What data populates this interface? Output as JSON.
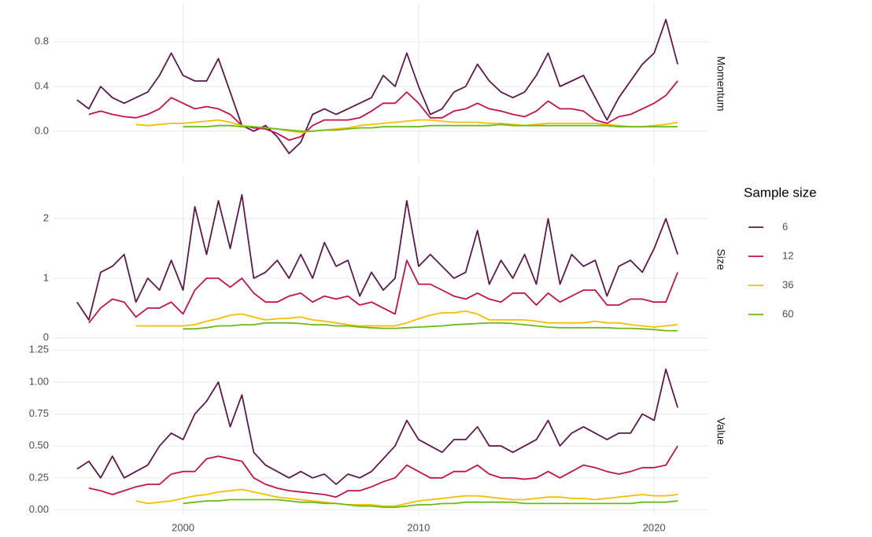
{
  "chart_data": [
    {
      "type": "line",
      "title": "Momentum",
      "legend_title": "Sample size",
      "x": [
        1995.5,
        1996,
        1996.5,
        1997,
        1997.5,
        1998,
        1998.5,
        1999,
        1999.5,
        2000,
        2000.5,
        2001,
        2001.5,
        2002,
        2002.5,
        2003,
        2003.5,
        2004,
        2004.5,
        2005,
        2005.5,
        2006,
        2006.5,
        2007,
        2007.5,
        2008,
        2008.5,
        2009,
        2009.5,
        2010,
        2010.5,
        2011,
        2011.5,
        2012,
        2012.5,
        2013,
        2013.5,
        2014,
        2014.5,
        2015,
        2015.5,
        2016,
        2016.5,
        2017,
        2017.5,
        2018,
        2018.5,
        2019,
        2019.5,
        2020,
        2020.5,
        2021
      ],
      "xlim": [
        1994.5,
        2022.3
      ],
      "xticks": [
        2000,
        2010,
        2020
      ],
      "ylim": [
        -0.29,
        1.14
      ],
      "yticks": [
        {
          "value": 0,
          "label": "0.0"
        },
        0.4,
        0.8
      ],
      "grid": true,
      "series": [
        {
          "name": "6",
          "color": "#5c1a4b",
          "values": [
            0.28,
            0.2,
            0.4,
            0.3,
            0.25,
            0.3,
            0.35,
            0.5,
            0.7,
            0.5,
            0.45,
            0.45,
            0.65,
            0.35,
            0.05,
            0.0,
            0.05,
            -0.05,
            -0.2,
            -0.1,
            0.15,
            0.2,
            0.15,
            0.2,
            0.25,
            0.3,
            0.5,
            0.4,
            0.7,
            0.4,
            0.15,
            0.2,
            0.35,
            0.4,
            0.6,
            0.45,
            0.35,
            0.3,
            0.35,
            0.5,
            0.7,
            0.4,
            0.45,
            0.5,
            0.3,
            0.1,
            0.3,
            0.45,
            0.6,
            0.7,
            1.0,
            0.6
          ]
        },
        {
          "name": "12",
          "color": "#c0134f",
          "values": [
            null,
            0.15,
            0.18,
            0.15,
            0.13,
            0.12,
            0.15,
            0.2,
            0.3,
            0.25,
            0.2,
            0.22,
            0.2,
            0.15,
            0.05,
            0.03,
            0.02,
            -0.02,
            -0.08,
            -0.05,
            0.05,
            0.1,
            0.1,
            0.1,
            0.12,
            0.18,
            0.25,
            0.25,
            0.35,
            0.25,
            0.12,
            0.12,
            0.18,
            0.2,
            0.25,
            0.2,
            0.18,
            0.15,
            0.13,
            0.18,
            0.27,
            0.2,
            0.2,
            0.18,
            0.1,
            0.07,
            0.13,
            0.15,
            0.2,
            0.25,
            0.32,
            0.45
          ]
        },
        {
          "name": "36",
          "color": "#f5bf00",
          "values": [
            null,
            null,
            null,
            null,
            null,
            0.06,
            0.05,
            0.06,
            0.07,
            0.07,
            0.08,
            0.09,
            0.1,
            0.08,
            0.05,
            0.04,
            0.03,
            0.02,
            0.0,
            -0.01,
            0.0,
            0.01,
            0.02,
            0.03,
            0.05,
            0.06,
            0.07,
            0.08,
            0.09,
            0.1,
            0.1,
            0.09,
            0.08,
            0.08,
            0.08,
            0.07,
            0.07,
            0.06,
            0.05,
            0.06,
            0.07,
            0.07,
            0.07,
            0.07,
            0.07,
            0.06,
            0.05,
            0.04,
            0.04,
            0.05,
            0.06,
            0.08
          ]
        },
        {
          "name": "60",
          "color": "#6aba18",
          "values": [
            null,
            null,
            null,
            null,
            null,
            null,
            null,
            null,
            null,
            0.04,
            0.04,
            0.04,
            0.05,
            0.05,
            0.04,
            0.04,
            0.03,
            0.02,
            0.01,
            0.0,
            0.0,
            0.01,
            0.01,
            0.02,
            0.03,
            0.03,
            0.04,
            0.04,
            0.04,
            0.04,
            0.05,
            0.05,
            0.05,
            0.05,
            0.05,
            0.05,
            0.06,
            0.05,
            0.05,
            0.05,
            0.05,
            0.05,
            0.05,
            0.05,
            0.05,
            0.05,
            0.04,
            0.04,
            0.04,
            0.04,
            0.04,
            0.04
          ]
        }
      ]
    },
    {
      "type": "line",
      "title": "Size",
      "x": [
        1995.5,
        1996,
        1996.5,
        1997,
        1997.5,
        1998,
        1998.5,
        1999,
        1999.5,
        2000,
        2000.5,
        2001,
        2001.5,
        2002,
        2002.5,
        2003,
        2003.5,
        2004,
        2004.5,
        2005,
        2005.5,
        2006,
        2006.5,
        2007,
        2007.5,
        2008,
        2008.5,
        2009,
        2009.5,
        2010,
        2010.5,
        2011,
        2011.5,
        2012,
        2012.5,
        2013,
        2013.5,
        2014,
        2014.5,
        2015,
        2015.5,
        2016,
        2016.5,
        2017,
        2017.5,
        2018,
        2018.5,
        2019,
        2019.5,
        2020,
        2020.5,
        2021
      ],
      "xlim": [
        1994.5,
        2022.3
      ],
      "xticks": [
        2000,
        2010,
        2020
      ],
      "ylim": [
        -0.07,
        2.7
      ],
      "yticks": [
        0,
        1,
        2
      ],
      "grid": true,
      "series": [
        {
          "name": "6",
          "color": "#5c1a4b",
          "values": [
            0.6,
            0.3,
            1.1,
            1.2,
            1.4,
            0.6,
            1.0,
            0.8,
            1.3,
            0.8,
            2.2,
            1.4,
            2.3,
            1.5,
            2.4,
            1.0,
            1.1,
            1.3,
            1.0,
            1.4,
            1.0,
            1.6,
            1.2,
            1.3,
            0.7,
            1.1,
            0.8,
            1.0,
            2.3,
            1.2,
            1.4,
            1.2,
            1.0,
            1.1,
            1.8,
            0.9,
            1.3,
            1.0,
            1.4,
            0.9,
            2.0,
            0.9,
            1.4,
            1.2,
            1.3,
            0.7,
            1.2,
            1.3,
            1.1,
            1.5,
            2.0,
            1.4
          ]
        },
        {
          "name": "12",
          "color": "#c0134f",
          "values": [
            null,
            0.25,
            0.5,
            0.65,
            0.6,
            0.35,
            0.5,
            0.5,
            0.6,
            0.4,
            0.8,
            1.0,
            1.0,
            0.85,
            1.0,
            0.75,
            0.6,
            0.6,
            0.7,
            0.75,
            0.6,
            0.7,
            0.65,
            0.7,
            0.55,
            0.6,
            0.5,
            0.4,
            1.3,
            0.9,
            0.9,
            0.8,
            0.7,
            0.65,
            0.75,
            0.65,
            0.6,
            0.75,
            0.75,
            0.55,
            0.75,
            0.6,
            0.7,
            0.8,
            0.8,
            0.55,
            0.55,
            0.65,
            0.65,
            0.6,
            0.6,
            1.1
          ]
        },
        {
          "name": "36",
          "color": "#f5bf00",
          "values": [
            null,
            null,
            null,
            null,
            null,
            0.2,
            0.2,
            0.2,
            0.2,
            0.2,
            0.22,
            0.28,
            0.32,
            0.38,
            0.4,
            0.35,
            0.3,
            0.32,
            0.33,
            0.35,
            0.3,
            0.28,
            0.25,
            0.22,
            0.2,
            0.2,
            0.2,
            0.2,
            0.25,
            0.32,
            0.38,
            0.42,
            0.42,
            0.45,
            0.4,
            0.3,
            0.3,
            0.3,
            0.3,
            0.28,
            0.25,
            0.25,
            0.25,
            0.25,
            0.28,
            0.25,
            0.25,
            0.22,
            0.2,
            0.18,
            0.2,
            0.22
          ]
        },
        {
          "name": "60",
          "color": "#6aba18",
          "values": [
            null,
            null,
            null,
            null,
            null,
            null,
            null,
            null,
            null,
            0.15,
            0.15,
            0.17,
            0.2,
            0.2,
            0.22,
            0.22,
            0.25,
            0.25,
            0.25,
            0.24,
            0.22,
            0.22,
            0.2,
            0.2,
            0.18,
            0.17,
            0.16,
            0.16,
            0.17,
            0.18,
            0.19,
            0.2,
            0.22,
            0.23,
            0.24,
            0.25,
            0.25,
            0.24,
            0.22,
            0.2,
            0.18,
            0.17,
            0.17,
            0.17,
            0.17,
            0.17,
            0.16,
            0.16,
            0.15,
            0.14,
            0.12,
            0.12
          ]
        }
      ]
    },
    {
      "type": "line",
      "title": "Value",
      "x": [
        1995.5,
        1996,
        1996.5,
        1997,
        1997.5,
        1998,
        1998.5,
        1999,
        1999.5,
        2000,
        2000.5,
        2001,
        2001.5,
        2002,
        2002.5,
        2003,
        2003.5,
        2004,
        2004.5,
        2005,
        2005.5,
        2006,
        2006.5,
        2007,
        2007.5,
        2008,
        2008.5,
        2009,
        2009.5,
        2010,
        2010.5,
        2011,
        2011.5,
        2012,
        2012.5,
        2013,
        2013.5,
        2014,
        2014.5,
        2015,
        2015.5,
        2016,
        2016.5,
        2017,
        2017.5,
        2018,
        2018.5,
        2019,
        2019.5,
        2020,
        2020.5,
        2021
      ],
      "xlim": [
        1994.5,
        2022.3
      ],
      "xticks": [
        2000,
        2010,
        2020
      ],
      "ylim": [
        -0.04,
        1.27
      ],
      "yticks": [
        {
          "value": 0,
          "label": "0.00"
        },
        {
          "value": 0.25,
          "label": "0.25"
        },
        {
          "value": 0.5,
          "label": "0.50"
        },
        {
          "value": 0.75,
          "label": "0.75"
        },
        {
          "value": 1,
          "label": "1.00"
        },
        {
          "value": 1.25,
          "label": "1.25"
        }
      ],
      "grid": true,
      "series": [
        {
          "name": "6",
          "color": "#5c1a4b",
          "values": [
            0.32,
            0.38,
            0.25,
            0.42,
            0.25,
            0.3,
            0.35,
            0.5,
            0.6,
            0.55,
            0.75,
            0.85,
            1.0,
            0.65,
            0.9,
            0.45,
            0.35,
            0.3,
            0.25,
            0.3,
            0.25,
            0.28,
            0.2,
            0.28,
            0.25,
            0.3,
            0.4,
            0.5,
            0.7,
            0.55,
            0.5,
            0.45,
            0.55,
            0.55,
            0.65,
            0.5,
            0.5,
            0.45,
            0.5,
            0.55,
            0.7,
            0.5,
            0.6,
            0.65,
            0.6,
            0.55,
            0.6,
            0.6,
            0.75,
            0.7,
            1.1,
            0.8
          ]
        },
        {
          "name": "12",
          "color": "#c0134f",
          "values": [
            null,
            0.17,
            0.15,
            0.12,
            0.15,
            0.18,
            0.2,
            0.2,
            0.28,
            0.3,
            0.3,
            0.4,
            0.42,
            0.4,
            0.38,
            0.25,
            0.2,
            0.17,
            0.15,
            0.14,
            0.13,
            0.12,
            0.1,
            0.15,
            0.15,
            0.18,
            0.22,
            0.25,
            0.35,
            0.3,
            0.25,
            0.25,
            0.3,
            0.3,
            0.35,
            0.28,
            0.25,
            0.25,
            0.24,
            0.25,
            0.3,
            0.25,
            0.3,
            0.35,
            0.33,
            0.3,
            0.28,
            0.3,
            0.33,
            0.33,
            0.35,
            0.5
          ]
        },
        {
          "name": "36",
          "color": "#f5bf00",
          "values": [
            null,
            null,
            null,
            null,
            null,
            0.07,
            0.05,
            0.06,
            0.07,
            0.09,
            0.11,
            0.12,
            0.14,
            0.15,
            0.16,
            0.14,
            0.12,
            0.1,
            0.09,
            0.08,
            0.07,
            0.06,
            0.05,
            0.04,
            0.04,
            0.04,
            0.03,
            0.03,
            0.05,
            0.07,
            0.08,
            0.09,
            0.1,
            0.11,
            0.11,
            0.1,
            0.09,
            0.08,
            0.08,
            0.09,
            0.1,
            0.1,
            0.09,
            0.09,
            0.08,
            0.09,
            0.1,
            0.11,
            0.12,
            0.11,
            0.11,
            0.12
          ]
        },
        {
          "name": "60",
          "color": "#6aba18",
          "values": [
            null,
            null,
            null,
            null,
            null,
            null,
            null,
            null,
            null,
            0.05,
            0.06,
            0.07,
            0.07,
            0.08,
            0.08,
            0.08,
            0.08,
            0.08,
            0.07,
            0.06,
            0.06,
            0.05,
            0.05,
            0.04,
            0.03,
            0.03,
            0.02,
            0.02,
            0.03,
            0.04,
            0.04,
            0.05,
            0.05,
            0.06,
            0.06,
            0.06,
            0.06,
            0.06,
            0.05,
            0.05,
            0.05,
            0.05,
            0.05,
            0.05,
            0.05,
            0.05,
            0.05,
            0.05,
            0.06,
            0.06,
            0.06,
            0.07
          ]
        }
      ]
    }
  ]
}
